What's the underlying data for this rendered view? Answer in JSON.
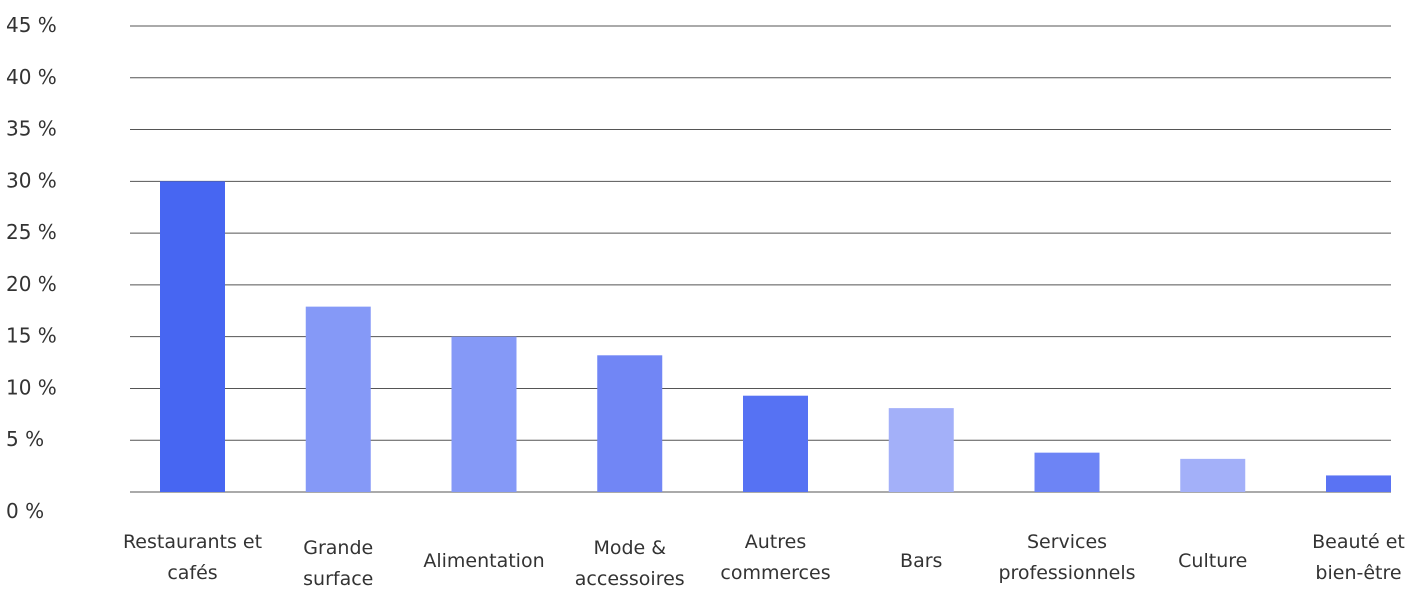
{
  "chart_data": {
    "type": "bar",
    "title": "",
    "xlabel": "",
    "ylabel": "",
    "ylim": [
      0,
      45
    ],
    "yticks": [
      0,
      5,
      10,
      15,
      20,
      25,
      30,
      35,
      40,
      45
    ],
    "ytick_labels": [
      "0 %",
      "5 %",
      "10 %",
      "15 %",
      "20 %",
      "25 %",
      "30 %",
      "35 %",
      "40 %",
      "45 %"
    ],
    "grid": true,
    "categories": [
      [
        "Restaurants et",
        "cafés"
      ],
      [
        "Grande",
        "surface"
      ],
      [
        "Alimentation"
      ],
      [
        "Mode &",
        "accessoires"
      ],
      [
        "Autres",
        "commerces"
      ],
      [
        "Bars"
      ],
      [
        "Services",
        "professionnels"
      ],
      [
        "Culture"
      ],
      [
        "Beauté et",
        "bien-être"
      ]
    ],
    "values": [
      30.0,
      17.9,
      15.0,
      13.2,
      9.3,
      8.1,
      3.8,
      3.2,
      1.6
    ],
    "colors": [
      "#4766f2",
      "#8599f7",
      "#8599f7",
      "#7186f5",
      "#5672f3",
      "#a3b0f9",
      "#6d84f5",
      "#a3b0f9",
      "#5a73f3"
    ]
  }
}
